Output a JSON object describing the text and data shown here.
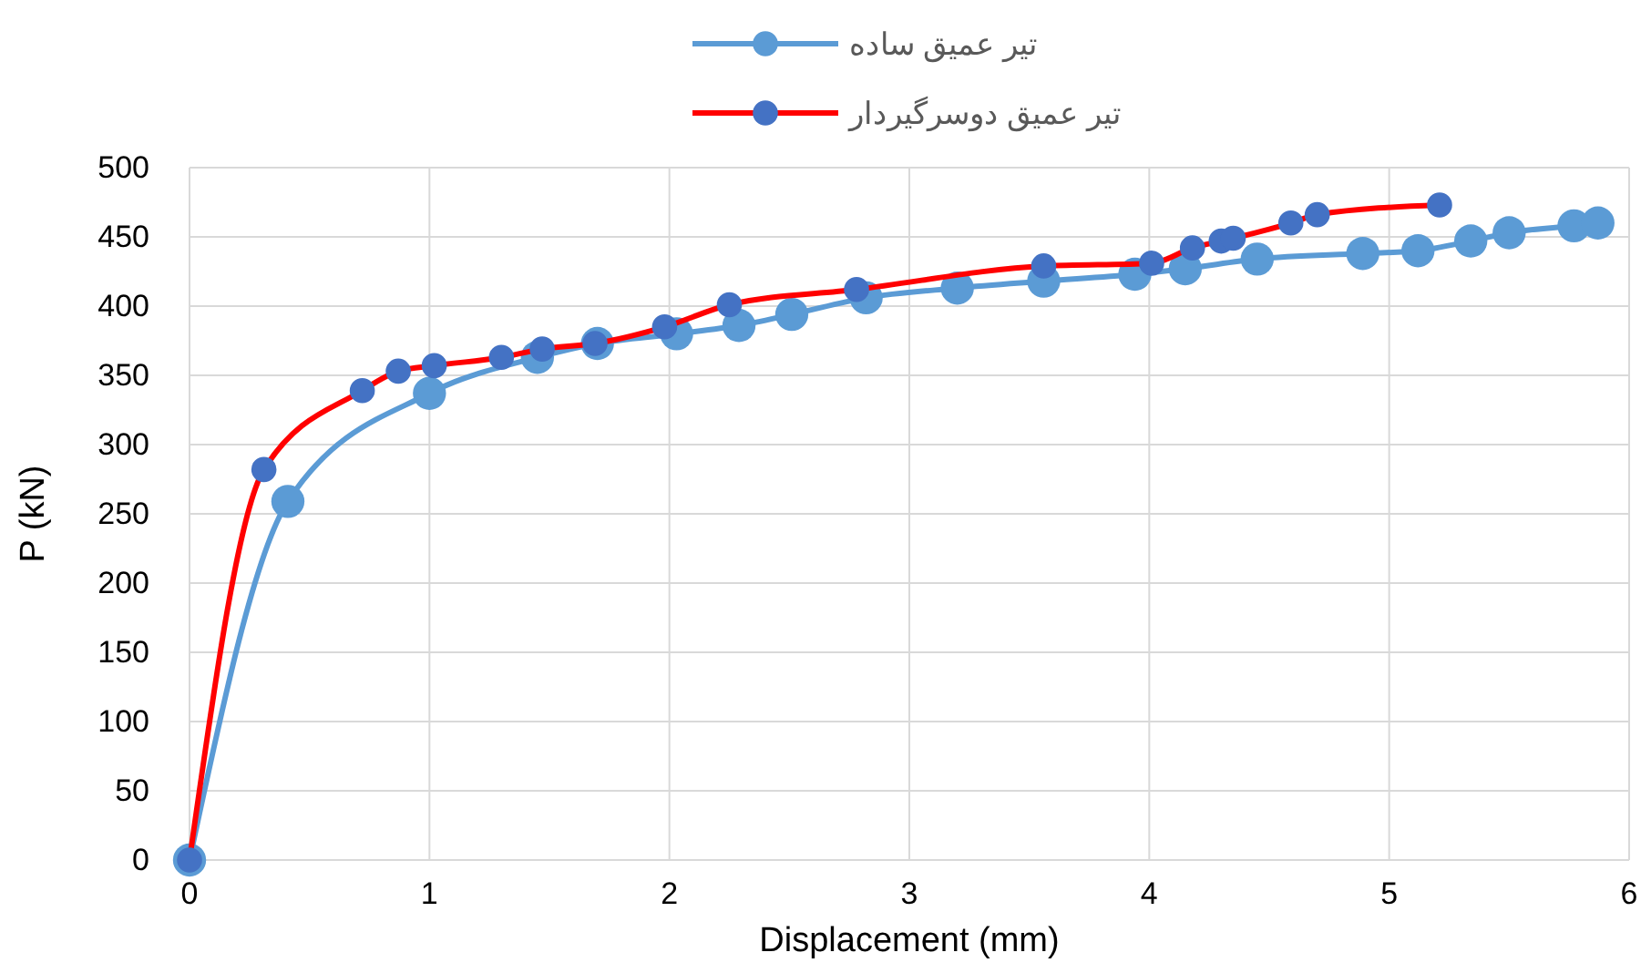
{
  "chart_data": {
    "type": "line",
    "xlabel": "Displacement (mm)",
    "ylabel": "P (kN)",
    "xlim": [
      0,
      6
    ],
    "xticks": [
      0,
      1,
      2,
      3,
      4,
      5,
      6
    ],
    "ylim": [
      0,
      500
    ],
    "yticks": [
      0,
      50,
      100,
      150,
      200,
      250,
      300,
      350,
      400,
      450,
      500
    ],
    "grid": true,
    "legend": "top",
    "marker": "circle",
    "series": [
      {
        "name": "تیر عمیق ساده",
        "color": "#5b9bd5",
        "x": [
          0,
          0.41,
          1.0,
          1.45,
          1.7,
          2.03,
          2.29,
          2.51,
          2.82,
          3.2,
          3.56,
          3.94,
          4.15,
          4.45,
          4.89,
          5.12,
          5.34,
          5.5,
          5.77,
          5.87
        ],
        "values": [
          0,
          259,
          337,
          363,
          373,
          380,
          386,
          394,
          406,
          413,
          418,
          423,
          427,
          434,
          438,
          440,
          447,
          453,
          458,
          460
        ]
      },
      {
        "name": "تیر عمیق دوسرگیردار",
        "color": "#ff0000",
        "colors": [
          "#4472c4",
          "#4472c4",
          "#4472c4",
          "#4472c4",
          "#4472c4",
          "#4472c4",
          "#4472c4",
          "#4472c4",
          "#4472c4",
          "#4472c4",
          "#4472c4",
          "#4472c4",
          "#4472c4",
          "#4472c4",
          "#4472c4",
          "#4472c4",
          "#4472c4",
          "#4472c4",
          "#4472c4"
        ],
        "x": [
          0,
          0.31,
          0.72,
          0.87,
          1.02,
          1.3,
          1.47,
          1.69,
          1.98,
          2.25,
          2.78,
          3.56,
          4.01,
          4.18,
          4.3,
          4.35,
          4.59,
          4.7,
          5.21
        ],
        "values": [
          0,
          282,
          339,
          353,
          357,
          363,
          369,
          373,
          385,
          401,
          412,
          429,
          431,
          442,
          447,
          449,
          460,
          466,
          473
        ]
      }
    ]
  }
}
